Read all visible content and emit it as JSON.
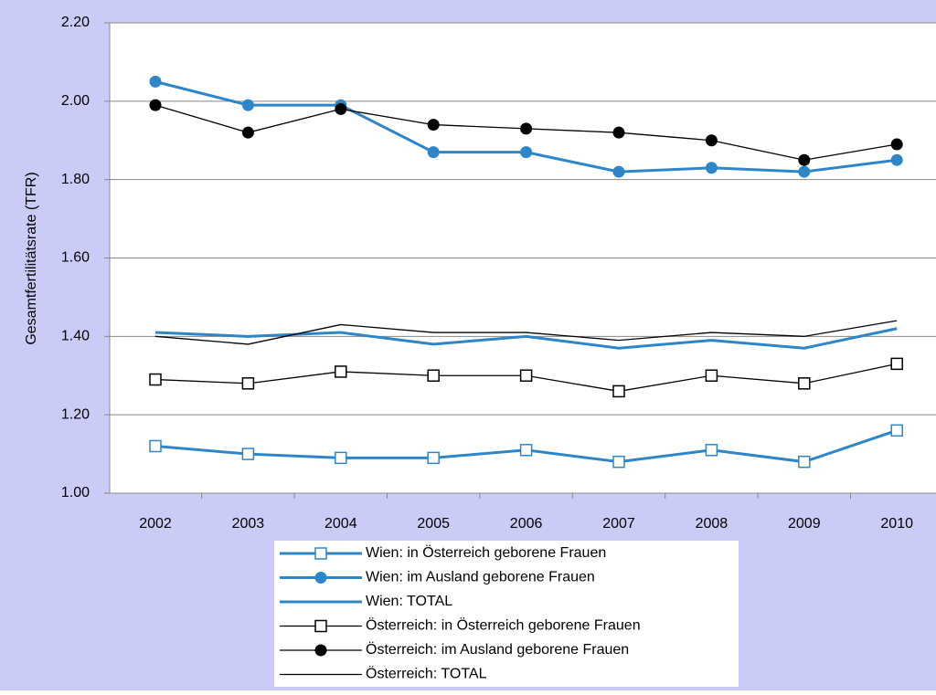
{
  "chart_data": {
    "type": "line",
    "y_label": "Gesamtfertilitätsrate (TFR)",
    "categories": [
      "2002",
      "2003",
      "2004",
      "2005",
      "2006",
      "2007",
      "2008",
      "2009",
      "2010"
    ],
    "series": [
      {
        "name": "Wien: in Österreich geborene Frauen",
        "color": "#2e86c8",
        "marker": "square-open",
        "width": 3,
        "values": [
          1.12,
          1.1,
          1.09,
          1.09,
          1.11,
          1.08,
          1.11,
          1.08,
          1.16
        ]
      },
      {
        "name": "Wien: im Ausland geborene Frauen",
        "color": "#2e86c8",
        "marker": "circle",
        "width": 3,
        "values": [
          2.05,
          1.99,
          1.99,
          1.87,
          1.87,
          1.82,
          1.83,
          1.82,
          1.85
        ]
      },
      {
        "name": "Wien: TOTAL",
        "color": "#2e86c8",
        "marker": "none",
        "width": 3,
        "values": [
          1.41,
          1.4,
          1.41,
          1.38,
          1.4,
          1.37,
          1.39,
          1.37,
          1.42
        ]
      },
      {
        "name": "Österreich: in Österreich geborene Frauen",
        "color": "#000000",
        "marker": "square-open",
        "width": 1.3,
        "values": [
          1.29,
          1.28,
          1.31,
          1.3,
          1.3,
          1.26,
          1.3,
          1.28,
          1.33
        ]
      },
      {
        "name": "Österreich: im Ausland geborene Frauen",
        "color": "#000000",
        "marker": "circle",
        "width": 1.3,
        "values": [
          1.99,
          1.92,
          1.98,
          1.94,
          1.93,
          1.92,
          1.9,
          1.85,
          1.89
        ]
      },
      {
        "name": "Österreich: TOTAL",
        "color": "#000000",
        "marker": "none",
        "width": 1.3,
        "values": [
          1.4,
          1.38,
          1.43,
          1.41,
          1.41,
          1.39,
          1.41,
          1.4,
          1.44
        ]
      }
    ],
    "ylim": [
      1.0,
      2.2
    ],
    "yticks": [
      {
        "value": 1.0,
        "label": "1.00"
      },
      {
        "value": 1.2,
        "label": "1.20"
      },
      {
        "value": 1.4,
        "label": "1.40"
      },
      {
        "value": 1.6,
        "label": "1.60"
      },
      {
        "value": 1.8,
        "label": "1.80"
      },
      {
        "value": 2.0,
        "label": "2.00"
      },
      {
        "value": 2.2,
        "label": "2.20"
      }
    ],
    "grid": true,
    "legend": "bottom"
  }
}
